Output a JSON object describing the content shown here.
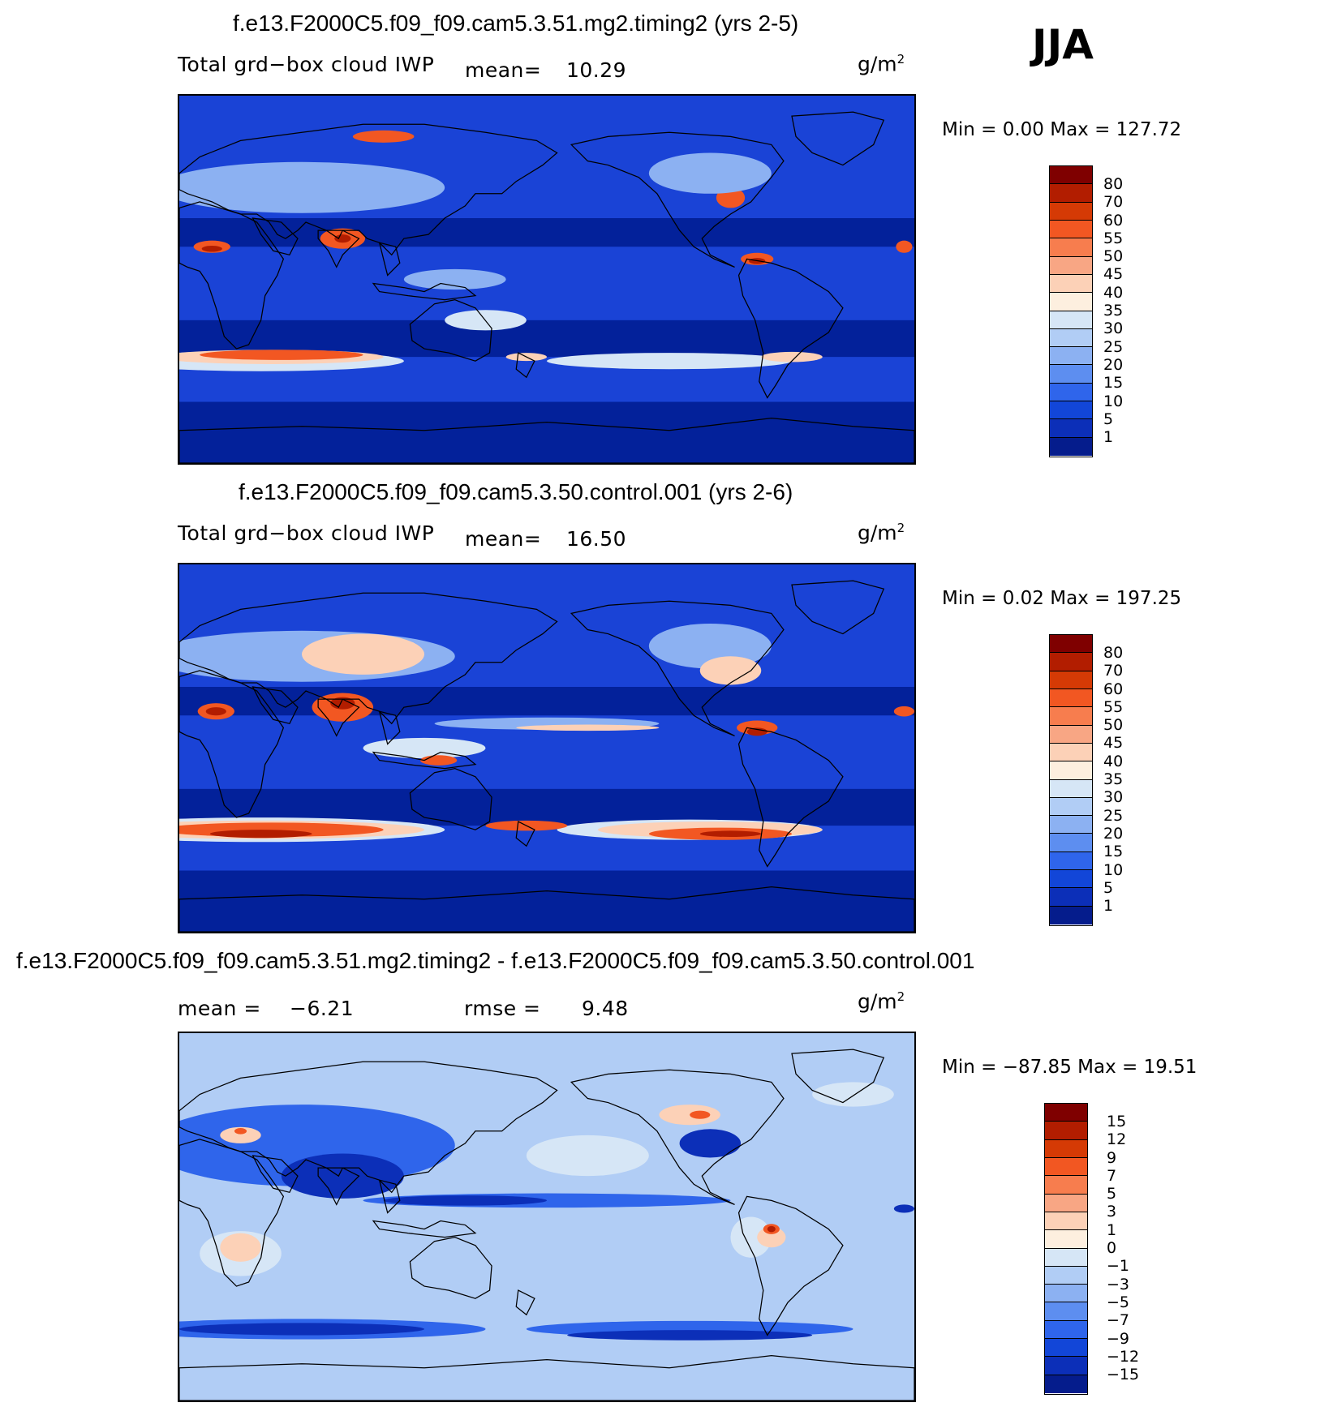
{
  "season": "JJA",
  "panels": [
    {
      "title": "f.e13.F2000C5.f09_f09.cam5.3.51.mg2.timing2 (yrs 2-5)",
      "variable": "Total grd−box cloud IWP",
      "stat1_label": "mean=",
      "stat1_value": "10.29",
      "units": "g/m",
      "units_exp": "2",
      "minmax": "Min =    0.00  Max  =  127.72",
      "colorbar": {
        "labels": [
          "80",
          "70",
          "60",
          "55",
          "50",
          "45",
          "40",
          "35",
          "30",
          "25",
          "20",
          "15",
          "10",
          "5",
          "1"
        ],
        "colors": [
          "#7f0000",
          "#b21d00",
          "#d53a05",
          "#f25722",
          "#f77d4e",
          "#f8a684",
          "#fcd1b7",
          "#fdefdf",
          "#d6e6f6",
          "#b1cdf5",
          "#8cb1f2",
          "#5d8ef0",
          "#2f65eb",
          "#1246d8",
          "#0c2fb8",
          "#051c8c"
        ]
      },
      "map_colors": {
        "ocean": "#1a43d6",
        "dry": "#001b8f",
        "mid": "#2f65eb",
        "light": "#8cb1f2",
        "pale": "#d6e6f6",
        "warm": "#fcd1b7",
        "orange": "#f25722",
        "red": "#b21d00"
      }
    },
    {
      "title": "f.e13.F2000C5.f09_f09.cam5.3.50.control.001 (yrs 2-6)",
      "variable": "Total grd−box cloud IWP",
      "stat1_label": "mean=",
      "stat1_value": "16.50",
      "units": "g/m",
      "units_exp": "2",
      "minmax": "Min =    0.02  Max  =  197.25",
      "colorbar": {
        "labels": [
          "80",
          "70",
          "60",
          "55",
          "50",
          "45",
          "40",
          "35",
          "30",
          "25",
          "20",
          "15",
          "10",
          "5",
          "1"
        ],
        "colors": [
          "#7f0000",
          "#b21d00",
          "#d53a05",
          "#f25722",
          "#f77d4e",
          "#f8a684",
          "#fcd1b7",
          "#fdefdf",
          "#d6e6f6",
          "#b1cdf5",
          "#8cb1f2",
          "#5d8ef0",
          "#2f65eb",
          "#1246d8",
          "#0c2fb8",
          "#051c8c"
        ]
      },
      "map_colors": {
        "ocean": "#1a43d6",
        "dry": "#001b8f",
        "mid": "#2f65eb",
        "light": "#8cb1f2",
        "pale": "#d6e6f6",
        "warm": "#fcd1b7",
        "orange": "#f25722",
        "red": "#b21d00"
      }
    },
    {
      "title": "f.e13.F2000C5.f09_f09.cam5.3.51.mg2.timing2 - f.e13.F2000C5.f09_f09.cam5.3.50.control.001",
      "stat1_label": "mean  =",
      "stat1_value": "−6.21",
      "stat2_label": "rmse  =",
      "stat2_value": "9.48",
      "units": "g/m",
      "units_exp": "2",
      "minmax": "Min  = −87.85  Max  =    19.51",
      "colorbar": {
        "labels": [
          "15",
          "12",
          "9",
          "7",
          "5",
          "3",
          "1",
          "0",
          "−1",
          "−3",
          "−5",
          "−7",
          "−9",
          "−12",
          "−15"
        ],
        "colors": [
          "#7f0000",
          "#b21d00",
          "#d53a05",
          "#f25722",
          "#f77d4e",
          "#f8a684",
          "#fcd1b7",
          "#fdefdf",
          "#d6e6f6",
          "#b1cdf5",
          "#8cb1f2",
          "#5d8ef0",
          "#2f65eb",
          "#1246d8",
          "#0c2fb8",
          "#051c8c"
        ]
      },
      "map_colors": {
        "ocean": "#b1cdf5",
        "dry": "#0c2fb8",
        "mid": "#2f65eb",
        "light": "#8cb1f2",
        "pale": "#d6e6f6",
        "warm": "#fcd1b7",
        "orange": "#f25722",
        "red": "#b21d00"
      }
    }
  ]
}
